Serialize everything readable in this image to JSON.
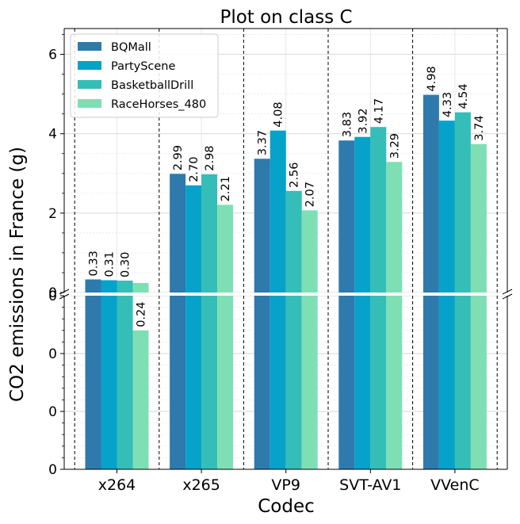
{
  "chart_data": {
    "type": "bar",
    "title": "Plot on class C",
    "xlabel": "Codec",
    "ylabel": "CO2 emissions in France (g)",
    "categories": [
      "x264",
      "x265",
      "VP9",
      "SVT-AV1",
      "VVenC"
    ],
    "series": [
      {
        "name": "BQMall",
        "color": "#2e7aac",
        "values": [
          0.33,
          2.99,
          3.37,
          3.83,
          4.98
        ],
        "labels": [
          "0.33",
          "2.99",
          "3.37",
          "3.83",
          "4.98"
        ]
      },
      {
        "name": "PartyScene",
        "color": "#06a2c9",
        "values": [
          0.31,
          2.7,
          4.08,
          3.92,
          4.33
        ],
        "labels": [
          "0.31",
          "2.70",
          "4.08",
          "3.92",
          "4.33"
        ]
      },
      {
        "name": "BasketballDrill",
        "color": "#35bdb7",
        "values": [
          0.3,
          2.98,
          2.56,
          4.17,
          4.54
        ],
        "labels": [
          "0.30",
          "2.98",
          "2.56",
          "4.17",
          "4.54"
        ]
      },
      {
        "name": "RaceHorses_480",
        "color": "#7fdfb4",
        "values": [
          0.24,
          2.21,
          2.07,
          3.29,
          3.74
        ],
        "labels": [
          "0.24",
          "2.21",
          "2.07",
          "3.29",
          "3.74"
        ]
      }
    ],
    "axis_break": true,
    "upper_panel": {
      "ylim": [
        0,
        6.65
      ],
      "ticks": [
        0,
        2,
        4,
        6
      ],
      "tick_labels": [
        "0",
        "2",
        "4",
        "6"
      ]
    },
    "lower_panel": {
      "ylim": [
        0,
        0.3
      ],
      "ticks": [
        0,
        0.1,
        0.2,
        0.3
      ],
      "tick_labels": [
        "0",
        "0",
        "0",
        "0"
      ]
    },
    "grid": true,
    "legend_position": "top-left"
  }
}
